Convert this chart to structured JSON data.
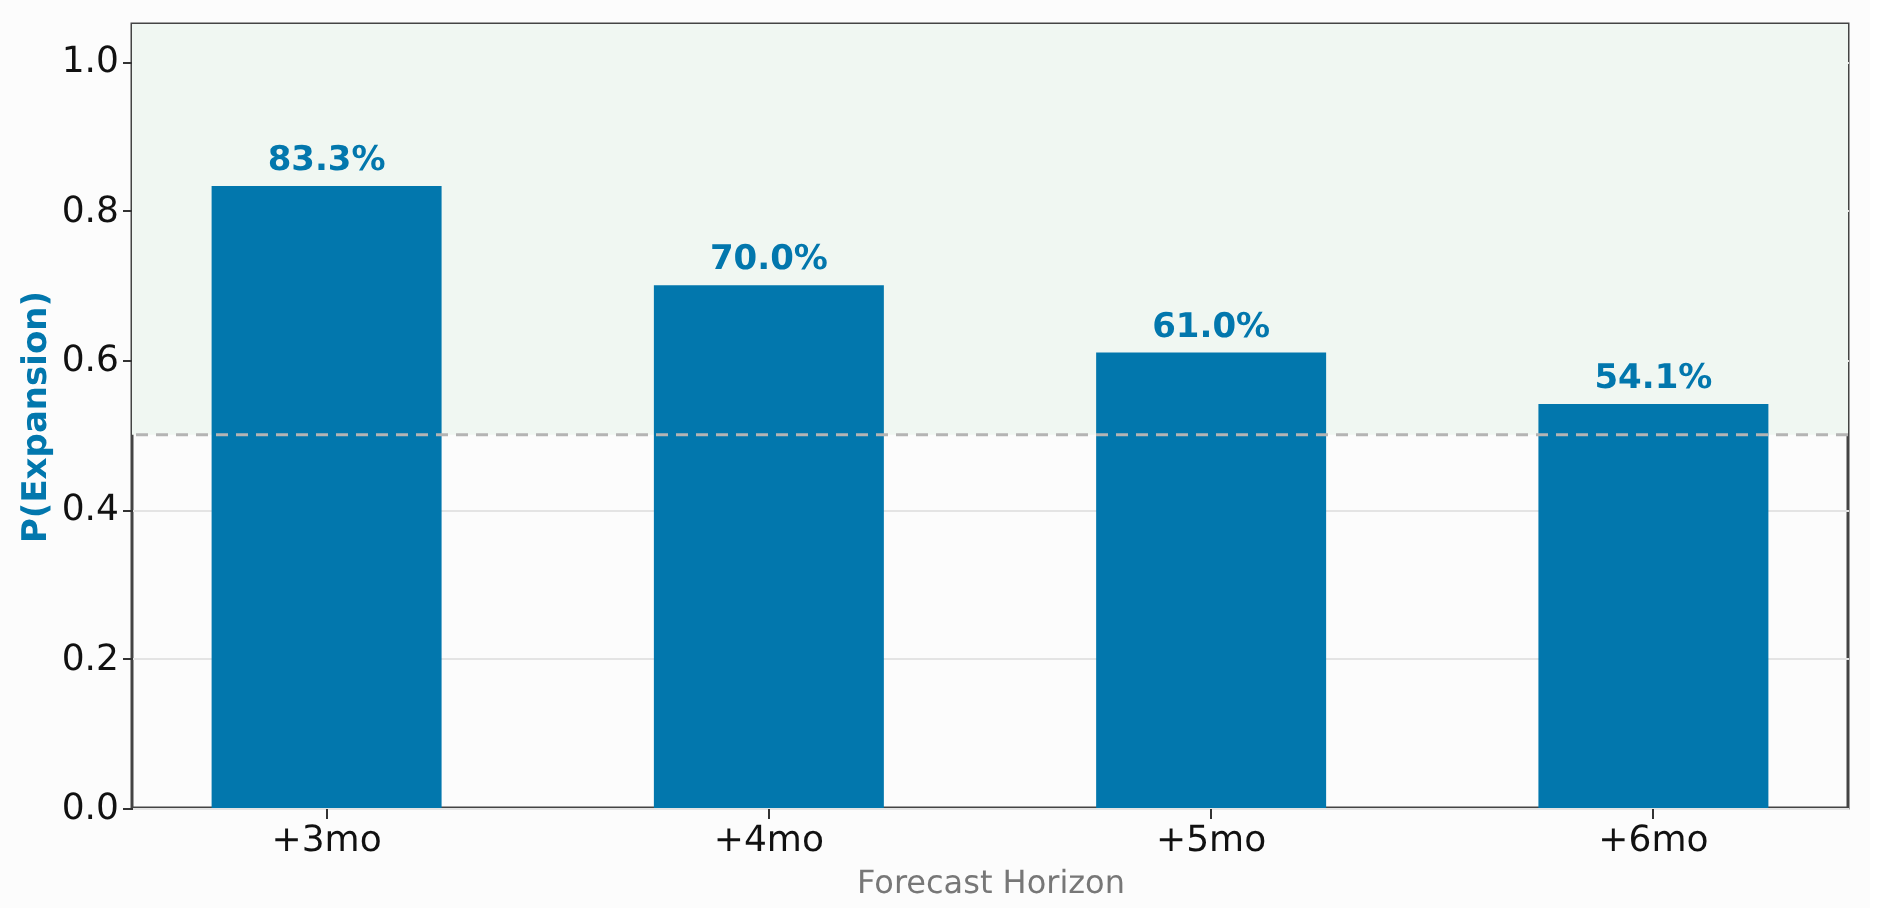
{
  "chart_data": {
    "type": "bar",
    "xlabel": "Forecast Horizon",
    "ylabel": "P(Expansion)",
    "categories": [
      "+3mo",
      "+4mo",
      "+5mo",
      "+6mo"
    ],
    "values": [
      0.833,
      0.7,
      0.61,
      0.541
    ],
    "value_labels": [
      "83.3%",
      "70.0%",
      "61.0%",
      "54.1%"
    ],
    "color": "#0277ad",
    "ylim": [
      0,
      1.05
    ],
    "yticks": [
      {
        "value": 0,
        "label": "0.0"
      },
      0.2,
      0.4,
      0.6,
      0.8,
      {
        "value": 1,
        "label": "1.0"
      }
    ],
    "grid": "y",
    "bands": [
      {
        "axis": "y",
        "from": 0.5,
        "to": 1.05,
        "color": "#f0f7f2"
      }
    ],
    "ref_lines": [
      {
        "axis": "y",
        "value": 0.5,
        "color": "#b4b4b4",
        "line_style": "dashed"
      }
    ]
  }
}
